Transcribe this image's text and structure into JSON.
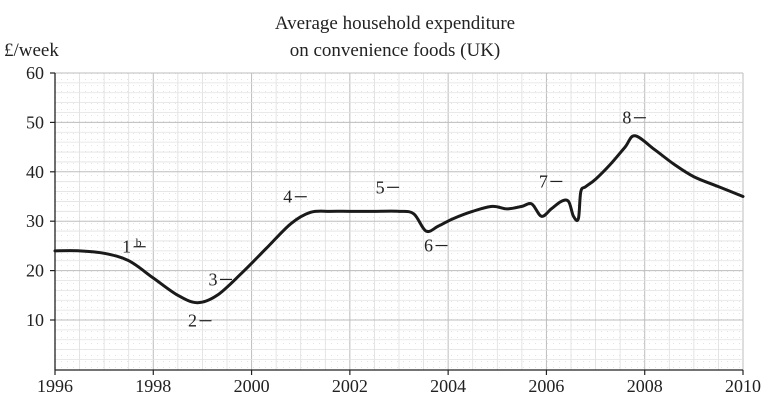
{
  "chart_data": {
    "type": "line",
    "title": "Average household expenditure",
    "subtitle": "on convenience foods (UK)",
    "ylabel": "£/week",
    "xlabel": "",
    "xlim": [
      1996,
      2010
    ],
    "ylim": [
      0,
      60
    ],
    "x_ticks": [
      1996,
      1998,
      2000,
      2002,
      2004,
      2006,
      2008,
      2010
    ],
    "y_ticks": [
      10,
      20,
      30,
      40,
      50,
      60
    ],
    "grid": true,
    "series": [
      {
        "x": [
          1996.0,
          1996.5,
          1997.0,
          1997.5,
          1998.0,
          1998.5,
          1998.9,
          1999.3,
          1999.8,
          2000.3,
          2000.8,
          2001.2,
          2001.6,
          2002.0,
          2002.5,
          2003.0,
          2003.3,
          2003.55,
          2003.8,
          2004.1,
          2004.5,
          2004.9,
          2005.2,
          2005.5,
          2005.7,
          2005.9,
          2006.1,
          2006.3,
          2006.45,
          2006.55,
          2006.65,
          2006.7,
          2006.8,
          2007.0,
          2007.3,
          2007.6,
          2007.8,
          2008.2,
          2008.6,
          2009.0,
          2009.5,
          2010.0
        ],
        "y": [
          24,
          24,
          23.5,
          22,
          18.5,
          15,
          13.5,
          15,
          19.5,
          24.5,
          29.5,
          31.8,
          32,
          32,
          32,
          32,
          31.5,
          28,
          29,
          30.5,
          32,
          33,
          32.5,
          33,
          33.5,
          31,
          32.5,
          34,
          34,
          31,
          30.5,
          36,
          37,
          38.5,
          41.5,
          45,
          47.3,
          44.5,
          41.5,
          39,
          37,
          35
        ]
      }
    ],
    "annotations": [
      {
        "label": "1",
        "sup": "b",
        "x": 1997.6,
        "y": 22
      },
      {
        "label": "2",
        "x": 1998.9,
        "y": 13.5
      },
      {
        "label": "3",
        "x": 1999.5,
        "y": 17
      },
      {
        "label": "4",
        "x": 2000.9,
        "y": 30.5
      },
      {
        "label": "5",
        "x": 2002.9,
        "y": 32
      },
      {
        "label": "6",
        "x": 2003.6,
        "y": 27.5
      },
      {
        "label": "7",
        "x": 2006.1,
        "y": 34
      },
      {
        "label": "8",
        "x": 2007.8,
        "y": 47.3
      }
    ]
  }
}
